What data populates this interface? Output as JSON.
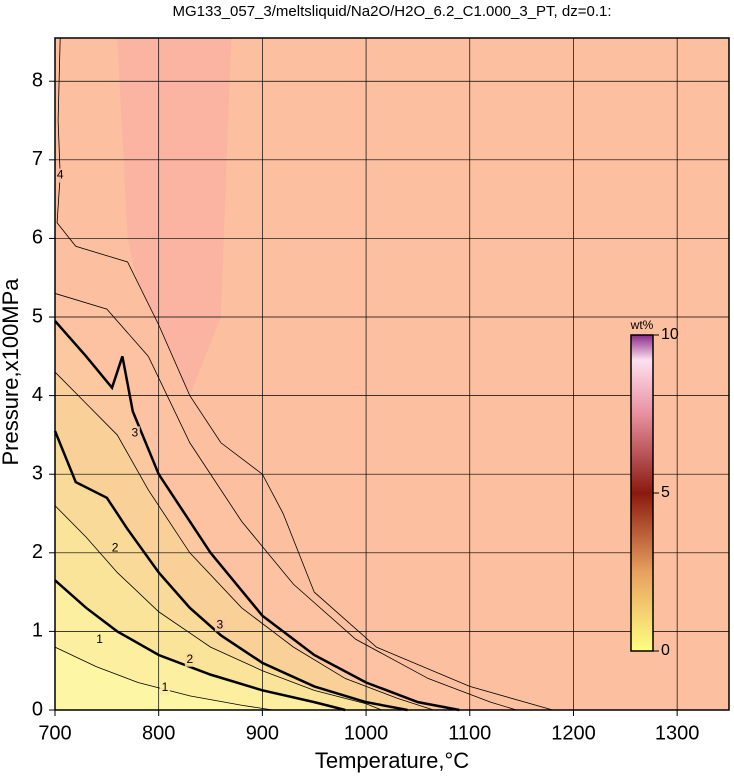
{
  "chart_data": {
    "type": "contour",
    "title": "MG133_057_3/meltsliquid/Na2O/H2O_6.2_C1.000_3_PT, dz=0.1:",
    "x_label": "Temperature,°C",
    "y_label": "Pressure,x100MPa",
    "xlim": [
      700,
      1350
    ],
    "ylim": [
      0,
      8.55
    ],
    "xticks": [
      700,
      800,
      900,
      1000,
      1100,
      1200,
      1300
    ],
    "yticks": [
      0,
      1,
      2,
      3,
      4,
      5,
      6,
      7,
      8
    ],
    "grid": true,
    "contours": [
      {
        "level": 0.5,
        "points": [
          [
            700,
            0.8
          ],
          [
            740,
            0.55
          ],
          [
            780,
            0.35
          ],
          [
            830,
            0.18
          ],
          [
            880,
            0.06
          ],
          [
            910,
            0
          ]
        ]
      },
      {
        "level": 1,
        "points": [
          [
            700,
            1.65
          ],
          [
            730,
            1.3
          ],
          [
            760,
            1.0
          ],
          [
            800,
            0.7
          ],
          [
            850,
            0.45
          ],
          [
            900,
            0.25
          ],
          [
            950,
            0.1
          ],
          [
            980,
            0
          ]
        ],
        "labels_at": [
          [
            743,
            0.89
          ],
          [
            806,
            0.28
          ]
        ]
      },
      {
        "level": 1.5,
        "points": [
          [
            700,
            2.6
          ],
          [
            730,
            2.2
          ],
          [
            760,
            1.75
          ],
          [
            800,
            1.25
          ],
          [
            850,
            0.8
          ],
          [
            900,
            0.5
          ],
          [
            950,
            0.25
          ],
          [
            1000,
            0.08
          ],
          [
            1015,
            0
          ]
        ]
      },
      {
        "level": 2,
        "points": [
          [
            700,
            3.55
          ],
          [
            720,
            2.9
          ],
          [
            750,
            2.7
          ],
          [
            770,
            2.3
          ],
          [
            800,
            1.75
          ],
          [
            830,
            1.3
          ],
          [
            860,
            0.95
          ],
          [
            900,
            0.6
          ],
          [
            950,
            0.3
          ],
          [
            1000,
            0.1
          ],
          [
            1040,
            0
          ]
        ],
        "labels_at": [
          [
            758,
            2.06
          ],
          [
            830,
            0.64
          ]
        ]
      },
      {
        "level": 2.5,
        "points": [
          [
            700,
            4.3
          ],
          [
            730,
            3.9
          ],
          [
            760,
            3.5
          ],
          [
            790,
            2.8
          ],
          [
            830,
            2.0
          ],
          [
            880,
            1.3
          ],
          [
            930,
            0.8
          ],
          [
            980,
            0.4
          ],
          [
            1030,
            0.15
          ],
          [
            1065,
            0
          ]
        ]
      },
      {
        "level": 3,
        "points": [
          [
            700,
            4.95
          ],
          [
            730,
            4.5
          ],
          [
            755,
            4.1
          ],
          [
            765,
            4.5
          ],
          [
            775,
            3.8
          ],
          [
            800,
            3.0
          ],
          [
            850,
            2.0
          ],
          [
            900,
            1.2
          ],
          [
            950,
            0.7
          ],
          [
            1000,
            0.35
          ],
          [
            1050,
            0.1
          ],
          [
            1090,
            0
          ]
        ],
        "labels_at": [
          [
            777,
            3.52
          ],
          [
            859,
            1.08
          ]
        ]
      },
      {
        "level": 3.5,
        "points": [
          [
            700,
            5.3
          ],
          [
            750,
            5.1
          ],
          [
            790,
            4.5
          ],
          [
            830,
            3.4
          ],
          [
            880,
            2.4
          ],
          [
            930,
            1.6
          ],
          [
            990,
            0.9
          ],
          [
            1060,
            0.4
          ],
          [
            1120,
            0.1
          ],
          [
            1145,
            0
          ]
        ]
      },
      {
        "level": 4,
        "points": [
          [
            705,
            8.55
          ],
          [
            703,
            7.5
          ],
          [
            705,
            6.8
          ],
          [
            702,
            6.2
          ],
          [
            720,
            5.9
          ],
          [
            770,
            5.7
          ],
          [
            800,
            4.9
          ],
          [
            830,
            4.0
          ],
          [
            860,
            3.4
          ],
          [
            900,
            3.0
          ],
          [
            920,
            2.5
          ],
          [
            950,
            1.5
          ],
          [
            1010,
            0.8
          ],
          [
            1100,
            0.3
          ],
          [
            1180,
            0
          ]
        ],
        "labels_at": [
          [
            705,
            6.8
          ]
        ]
      }
    ],
    "colorbar": {
      "label": "wt%",
      "lim": [
        0,
        10
      ],
      "ticks": [
        0,
        5,
        10
      ]
    }
  }
}
